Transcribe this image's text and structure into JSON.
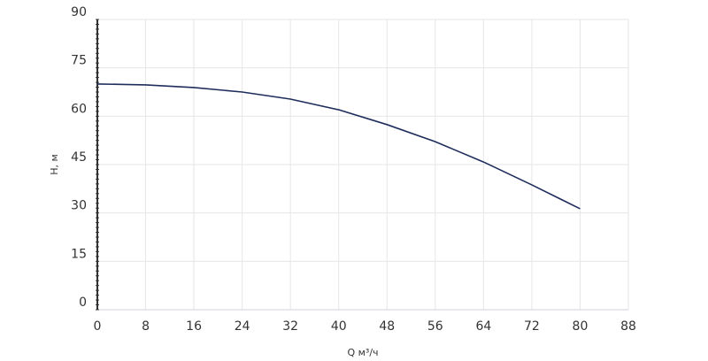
{
  "chart_data": {
    "type": "line",
    "x_label": "Q м³/ч",
    "y_label": "H, м",
    "x": [
      0,
      8,
      16,
      24,
      32,
      40,
      48,
      56,
      64,
      72,
      80
    ],
    "series": [
      {
        "name": "H",
        "color": "#1f2d5c",
        "values": [
          70.0,
          69.7,
          68.9,
          67.5,
          65.3,
          62.0,
          57.4,
          52.1,
          45.8,
          38.7,
          31.3
        ]
      }
    ],
    "xlim": [
      0,
      88
    ],
    "xticks": [
      0,
      8,
      16,
      24,
      32,
      40,
      48,
      56,
      64,
      72,
      80,
      88
    ],
    "ylim": [
      0,
      90
    ],
    "yticks": [
      0,
      15,
      30,
      45,
      60,
      75,
      90
    ],
    "grid": true
  }
}
